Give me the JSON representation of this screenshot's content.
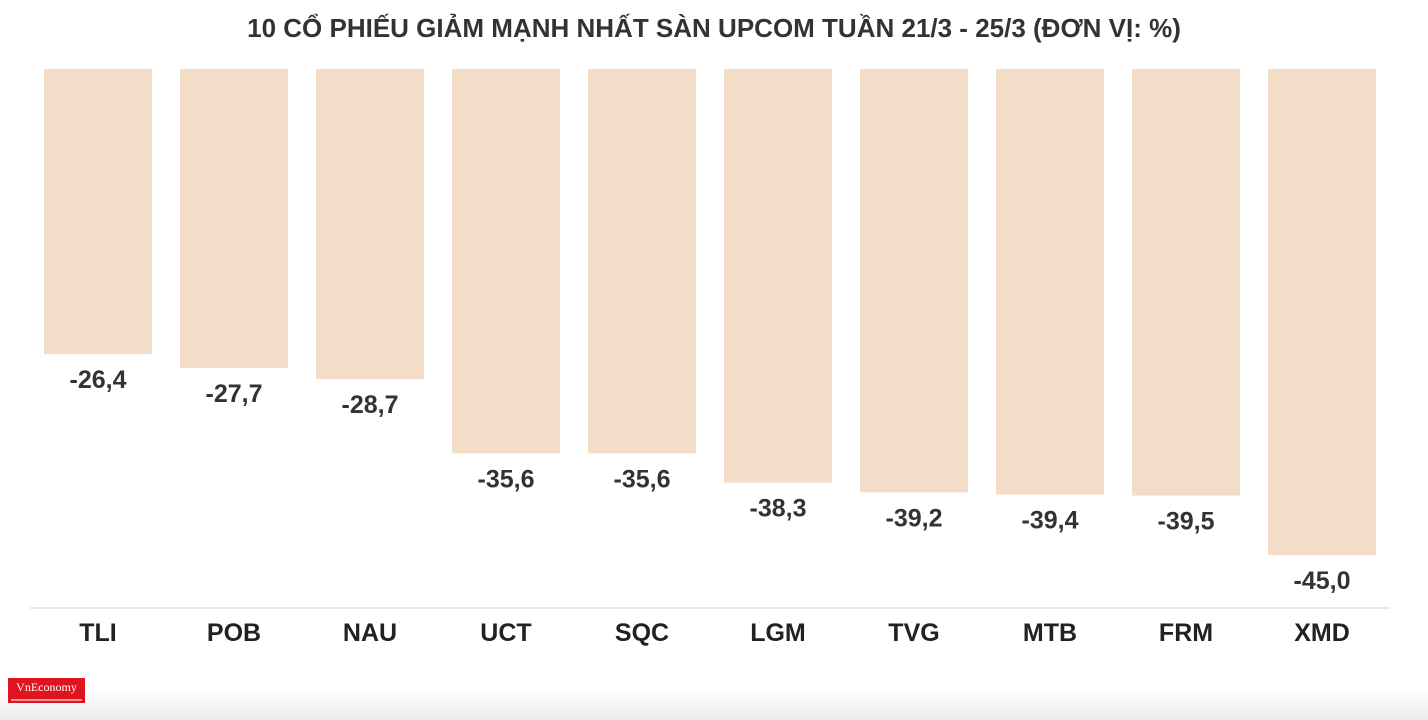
{
  "chart_data": {
    "type": "bar",
    "title": "10 CỔ PHIẾU GIẢM MẠNH NHẤT SÀN UPCOM TUẦN 21/3 - 25/3 (ĐƠN VỊ: %)",
    "categories": [
      "TLI",
      "POB",
      "NAU",
      "UCT",
      "SQC",
      "LGM",
      "TVG",
      "MTB",
      "FRM",
      "XMD"
    ],
    "values": [
      -26.4,
      -27.7,
      -28.7,
      -35.6,
      -35.6,
      -38.3,
      -39.2,
      -39.4,
      -39.5,
      -45.0
    ],
    "value_labels": [
      "-26,4",
      "-27,7",
      "-28,7",
      "-35,6",
      "-35,6",
      "-38,3",
      "-39,2",
      "-39,4",
      "-39,5",
      "-45,0"
    ],
    "xlabel": "",
    "ylabel": "",
    "grid": false,
    "legend": "none",
    "bar_color": "#f3dcc8"
  },
  "logo": {
    "text": "VnEconomy",
    "color": "#e0141e"
  }
}
